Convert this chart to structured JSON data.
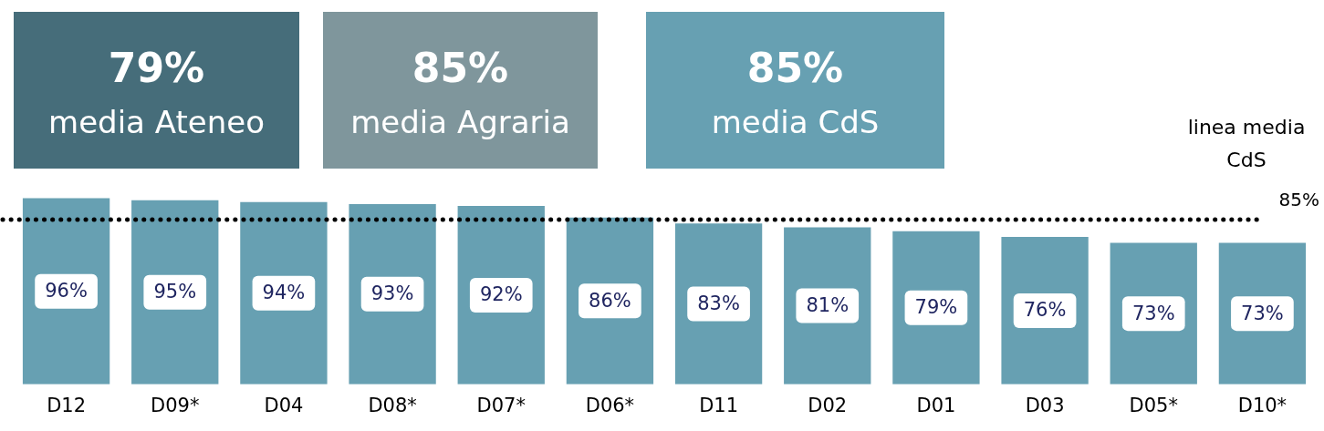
{
  "chart_data": [
    {
      "type": "other",
      "annotations": [
        "79%",
        "media Ateneo",
        "85%",
        "media Agraria",
        "85%",
        "media CdS"
      ],
      "colors": [
        "#466d7a",
        "#7f969c",
        "#67a0b2"
      ]
    },
    {
      "type": "bar",
      "categories": [
        "D12",
        "D09*",
        "D04",
        "D08*",
        "D07*",
        "D06*",
        "D11",
        "D02",
        "D01",
        "D03",
        "D05*",
        "D10*"
      ],
      "values": [
        96,
        95,
        94,
        93,
        92,
        86,
        83,
        81,
        79,
        76,
        73,
        73
      ],
      "value_labels": [
        "96%",
        "95%",
        "94%",
        "93%",
        "92%",
        "86%",
        "83%",
        "81%",
        "79%",
        "76%",
        "73%",
        "73%"
      ],
      "color": "#67a0b2",
      "tick_labels": "x",
      "grid": false,
      "legend": false,
      "ref_lines": [
        {
          "axis": "y",
          "value": 85,
          "label": "85%",
          "line_style": "dotted",
          "color": "#000000"
        }
      ],
      "annotations": [
        {
          "text": "linea media CdS",
          "y": 85
        }
      ]
    }
  ]
}
